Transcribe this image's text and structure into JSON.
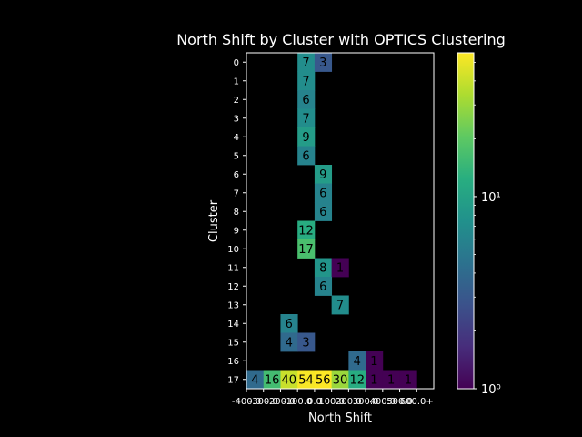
{
  "chart_data": {
    "type": "heatmap",
    "title": "North Shift by Cluster with OPTICS Clustering",
    "xlabel": "North Shift",
    "ylabel": "Cluster",
    "x_categories": [
      "-400.0",
      "-300.0",
      "-200.0",
      "-100.0",
      "0.0",
      "100.0",
      "200.0",
      "300.0",
      "400.0",
      "500.0",
      "600.0+"
    ],
    "y_categories": [
      "0",
      "1",
      "2",
      "3",
      "4",
      "5",
      "6",
      "7",
      "8",
      "9",
      "10",
      "11",
      "12",
      "13",
      "14",
      "15",
      "16",
      "17"
    ],
    "cells": [
      {
        "row": 0,
        "col": 3,
        "value": 7
      },
      {
        "row": 0,
        "col": 4,
        "value": 3
      },
      {
        "row": 1,
        "col": 3,
        "value": 7
      },
      {
        "row": 2,
        "col": 3,
        "value": 6
      },
      {
        "row": 3,
        "col": 3,
        "value": 7
      },
      {
        "row": 4,
        "col": 3,
        "value": 9
      },
      {
        "row": 5,
        "col": 3,
        "value": 6
      },
      {
        "row": 6,
        "col": 4,
        "value": 9
      },
      {
        "row": 7,
        "col": 4,
        "value": 6
      },
      {
        "row": 8,
        "col": 4,
        "value": 6
      },
      {
        "row": 9,
        "col": 3,
        "value": 12
      },
      {
        "row": 10,
        "col": 3,
        "value": 17
      },
      {
        "row": 11,
        "col": 4,
        "value": 8
      },
      {
        "row": 11,
        "col": 5,
        "value": 1
      },
      {
        "row": 12,
        "col": 4,
        "value": 6
      },
      {
        "row": 13,
        "col": 5,
        "value": 7
      },
      {
        "row": 14,
        "col": 2,
        "value": 6
      },
      {
        "row": 15,
        "col": 2,
        "value": 4
      },
      {
        "row": 15,
        "col": 3,
        "value": 3
      },
      {
        "row": 16,
        "col": 6,
        "value": 4
      },
      {
        "row": 16,
        "col": 7,
        "value": 1
      },
      {
        "row": 17,
        "col": 0,
        "value": 4
      },
      {
        "row": 17,
        "col": 1,
        "value": 16
      },
      {
        "row": 17,
        "col": 2,
        "value": 40
      },
      {
        "row": 17,
        "col": 3,
        "value": 54
      },
      {
        "row": 17,
        "col": 4,
        "value": 56
      },
      {
        "row": 17,
        "col": 5,
        "value": 30
      },
      {
        "row": 17,
        "col": 6,
        "value": 12
      },
      {
        "row": 17,
        "col": 7,
        "value": 1
      },
      {
        "row": 17,
        "col": 8,
        "value": 1
      },
      {
        "row": 17,
        "col": 9,
        "value": 1
      }
    ],
    "colorbar": {
      "scale": "log",
      "colormap": "viridis",
      "min": 1,
      "max": 56,
      "tick_values": [
        1,
        10
      ],
      "tick_labels": [
        "10⁰",
        "10¹"
      ]
    },
    "background": "#000000",
    "grid": false
  }
}
